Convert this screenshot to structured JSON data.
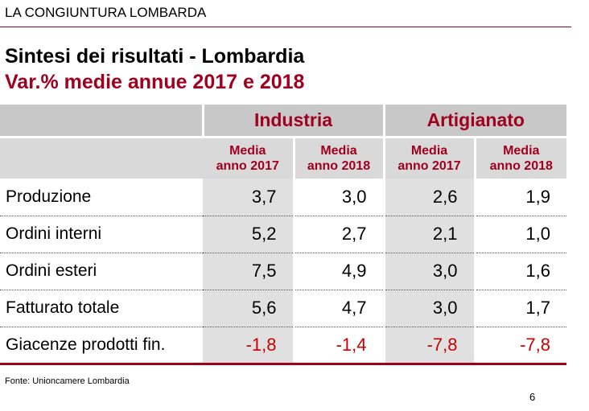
{
  "header": {
    "label": "LA CONGIUNTURA LOMBARDA"
  },
  "title": "Sintesi dei risultati - Lombardia",
  "subtitle": "Var.% medie annue 2017 e 2018",
  "table": {
    "groups": [
      "Industria",
      "Artigianato"
    ],
    "subheaders": [
      {
        "line1": "Media",
        "line2": "anno 2017"
      },
      {
        "line1": "Media",
        "line2": "anno 2018"
      },
      {
        "line1": "Media",
        "line2": "anno 2017"
      },
      {
        "line1": "Media",
        "line2": "anno 2018"
      }
    ],
    "rows": [
      {
        "label": "Produzione",
        "values": [
          "3,7",
          "3,0",
          "2,6",
          "1,9"
        ]
      },
      {
        "label": "Ordini interni",
        "values": [
          "5,2",
          "2,7",
          "2,1",
          "1,0"
        ]
      },
      {
        "label": "Ordini esteri",
        "values": [
          "7,5",
          "4,9",
          "3,0",
          "1,6"
        ]
      },
      {
        "label": "Fatturato totale",
        "values": [
          "5,6",
          "4,7",
          "3,0",
          "1,7"
        ]
      },
      {
        "label": "Giacenze prodotti fin.",
        "values": [
          "-1,8",
          "-1,4",
          "-7,8",
          "-7,8"
        ]
      }
    ]
  },
  "source": "Fonte: Unioncamere Lombardia",
  "page_number": "6",
  "colors": {
    "accent": "#a0001e",
    "negative": "#cc0000",
    "header_gray": "#c8c8c8",
    "cell_gray": "#e0e0e0"
  }
}
